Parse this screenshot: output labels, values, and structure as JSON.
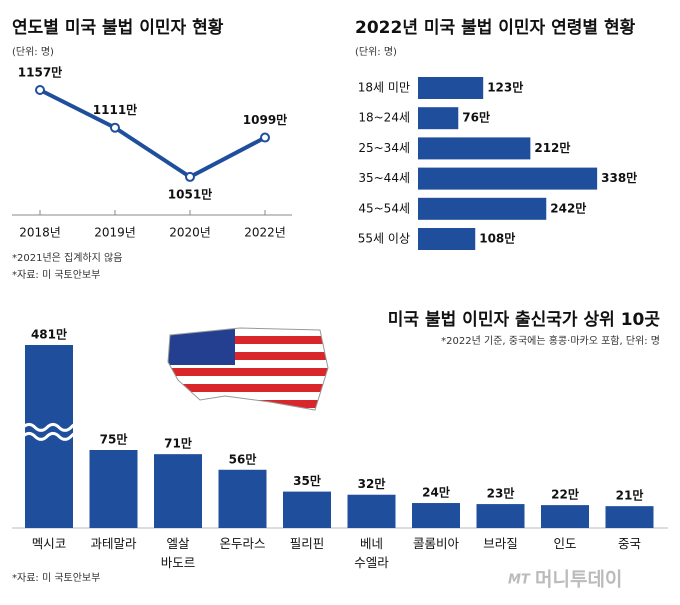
{
  "chart_data": [
    {
      "type": "line",
      "title": "연도별 미국 불법 이민자 현황",
      "subtitle": "(단위: 명)",
      "categories": [
        "2018년",
        "2019년",
        "2020년",
        "2022년"
      ],
      "values": [
        1157,
        1111,
        1051,
        1099
      ],
      "value_labels": [
        "1157만",
        "1111만",
        "1051만",
        "1099만"
      ],
      "color": "#1f4e9c",
      "notes": [
        "*2021년은 집계하지 않음",
        "*자료: 미 국토안보부"
      ]
    },
    {
      "type": "hbar",
      "title": "2022년 미국 불법 이민자 연령별 현황",
      "subtitle": "(단위: 명)",
      "categories": [
        "18세 미만",
        "18~24세",
        "25~34세",
        "35~44세",
        "45~54세",
        "55세 이상"
      ],
      "values": [
        123,
        76,
        212,
        338,
        242,
        108
      ],
      "value_labels": [
        "123만",
        "76만",
        "212만",
        "338만",
        "242만",
        "108만"
      ],
      "color": "#1f4e9c"
    },
    {
      "type": "bar",
      "title": "미국 불법 이민자 출신국가 상위 10곳",
      "subtitle": "*2022년 기준, 중국에는 홍콩·마카오 포함, 단위: 명",
      "categories": [
        "멕시코",
        "과테말라",
        "엘살\n바도르",
        "온두라스",
        "필리핀",
        "베네\n수엘라",
        "콜롬비아",
        "브라질",
        "인도",
        "중국"
      ],
      "values": [
        481,
        75,
        71,
        56,
        35,
        32,
        24,
        23,
        22,
        21
      ],
      "value_labels": [
        "481만",
        "75만",
        "71만",
        "56만",
        "35만",
        "32만",
        "24만",
        "23만",
        "22만",
        "21만"
      ],
      "color": "#1f4e9c",
      "source": "*자료: 미 국토안보부"
    }
  ],
  "watermark": {
    "logo": "MT",
    "text": "머니투데이"
  }
}
